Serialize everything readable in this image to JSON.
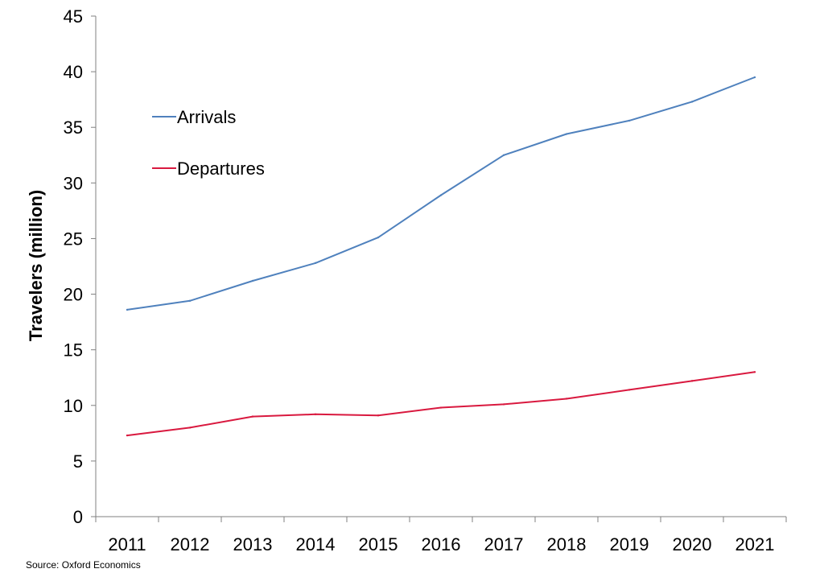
{
  "chart_data": {
    "type": "line",
    "categories": [
      "2011",
      "2012",
      "2013",
      "2014",
      "2015",
      "2016",
      "2017",
      "2018",
      "2019",
      "2020",
      "2021"
    ],
    "series": [
      {
        "name": "Arrivals",
        "color": "#4f81bd",
        "values": [
          18.6,
          19.4,
          21.2,
          22.8,
          25.1,
          28.9,
          32.5,
          34.4,
          35.6,
          37.3,
          39.5
        ]
      },
      {
        "name": "Departures",
        "color": "#d9193f",
        "values": [
          7.3,
          8.0,
          9.0,
          9.2,
          9.1,
          9.8,
          10.1,
          10.6,
          11.4,
          12.2,
          13.0
        ]
      }
    ],
    "ylabel": "Travelers (million)",
    "xlabel": "",
    "ylim": [
      0,
      45
    ],
    "yticks": [
      0,
      5,
      10,
      15,
      20,
      25,
      30,
      35,
      40,
      45
    ],
    "grid": false,
    "legend": "top-left"
  },
  "source": "Source: Oxford Economics"
}
